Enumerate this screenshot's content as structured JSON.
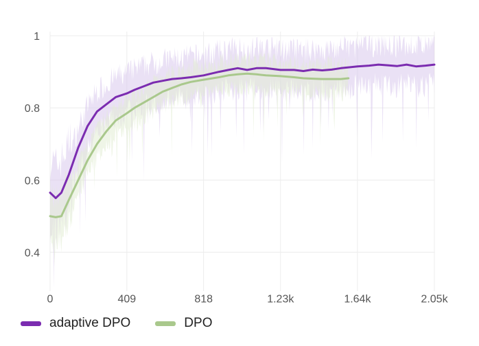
{
  "chart_data": {
    "type": "line",
    "title": "",
    "xlabel": "",
    "ylabel": "",
    "xlim": [
      0,
      2048
    ],
    "ylim": [
      0.3,
      1.0
    ],
    "x_ticks": [
      0,
      409,
      818,
      1228,
      1638,
      2048
    ],
    "x_tick_labels": [
      "0",
      "409",
      "818",
      "1.23k",
      "1.64k",
      "2.05k"
    ],
    "y_ticks": [
      0.4,
      0.6,
      0.8,
      1.0
    ],
    "y_tick_labels": [
      "0.4",
      "0.6",
      "0.8",
      "1"
    ],
    "grid": true,
    "legend_position": "bottom-left",
    "series": [
      {
        "name": "adaptive DPO",
        "color": "#7b2cb0",
        "band_color": "#d9c8ec",
        "x": [
          0,
          30,
          60,
          100,
          150,
          200,
          250,
          300,
          350,
          409,
          450,
          500,
          550,
          600,
          650,
          700,
          750,
          818,
          900,
          950,
          1000,
          1050,
          1100,
          1150,
          1228,
          1300,
          1350,
          1400,
          1450,
          1500,
          1550,
          1638,
          1700,
          1750,
          1800,
          1850,
          1900,
          1950,
          2000,
          2048
        ],
        "values": [
          0.565,
          0.55,
          0.565,
          0.615,
          0.69,
          0.75,
          0.79,
          0.81,
          0.83,
          0.84,
          0.85,
          0.86,
          0.87,
          0.875,
          0.88,
          0.882,
          0.885,
          0.89,
          0.9,
          0.905,
          0.91,
          0.905,
          0.91,
          0.91,
          0.905,
          0.905,
          0.902,
          0.906,
          0.904,
          0.906,
          0.91,
          0.915,
          0.917,
          0.92,
          0.918,
          0.916,
          0.92,
          0.915,
          0.917,
          0.92
        ]
      },
      {
        "name": "DPO",
        "color": "#a9c88c",
        "band_color": "#e1ecd4",
        "x": [
          0,
          30,
          60,
          100,
          150,
          200,
          250,
          300,
          350,
          409,
          450,
          500,
          550,
          600,
          650,
          700,
          750,
          818,
          900,
          950,
          1000,
          1050,
          1100,
          1150,
          1228,
          1300,
          1350,
          1400,
          1450,
          1500,
          1550,
          1590
        ],
        "values": [
          0.5,
          0.497,
          0.5,
          0.545,
          0.6,
          0.655,
          0.7,
          0.735,
          0.765,
          0.785,
          0.8,
          0.815,
          0.83,
          0.845,
          0.855,
          0.865,
          0.872,
          0.878,
          0.885,
          0.89,
          0.893,
          0.895,
          0.893,
          0.89,
          0.888,
          0.885,
          0.882,
          0.881,
          0.88,
          0.88,
          0.88,
          0.882
        ]
      }
    ]
  }
}
